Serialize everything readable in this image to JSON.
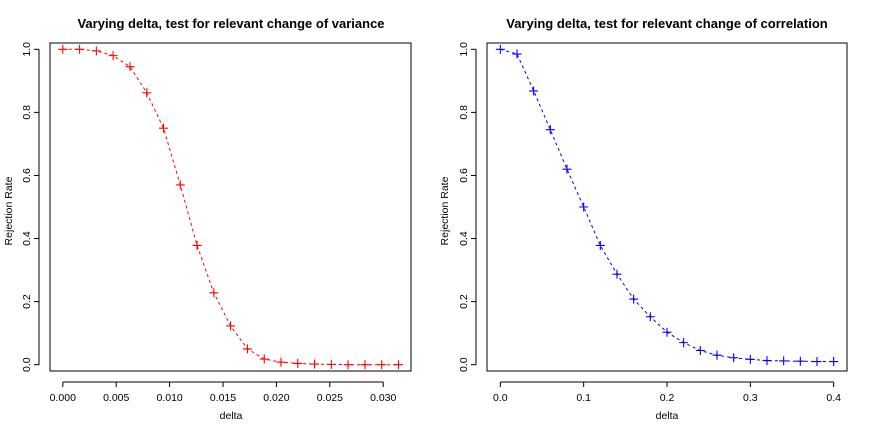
{
  "chart_data": [
    {
      "type": "line",
      "title": "Varying delta, test for relevant change of variance",
      "xlabel": "delta",
      "ylabel": "Rejection Rate",
      "xlim": [
        -0.0012,
        0.0326
      ],
      "ylim": [
        -0.02,
        1.02
      ],
      "xticks": [
        0.0,
        0.005,
        0.01,
        0.015,
        0.02,
        0.025,
        0.03
      ],
      "xtick_labels": [
        "0.000",
        "0.005",
        "0.010",
        "0.015",
        "0.020",
        "0.025",
        "0.030"
      ],
      "yticks": [
        0.0,
        0.2,
        0.4,
        0.6,
        0.8,
        1.0
      ],
      "ytick_labels": [
        "0.0",
        "0.2",
        "0.4",
        "0.6",
        "0.8",
        "1.0"
      ],
      "color": "#ff0000",
      "marker": "plus",
      "line_style": "dashed",
      "grid": false,
      "series": [
        {
          "x": [
            0.0,
            0.00157,
            0.00314,
            0.00471,
            0.00629,
            0.00786,
            0.00943,
            0.011,
            0.01257,
            0.01414,
            0.01571,
            0.01729,
            0.01886,
            0.02043,
            0.022,
            0.02357,
            0.02514,
            0.02671,
            0.02829,
            0.02986,
            0.03143
          ],
          "values": [
            1.0,
            1.0,
            0.995,
            0.98,
            0.945,
            0.862,
            0.75,
            0.57,
            0.378,
            0.228,
            0.123,
            0.05,
            0.018,
            0.008,
            0.004,
            0.002,
            0.001,
            0.0,
            0.0,
            0.0,
            0.0
          ]
        }
      ]
    },
    {
      "type": "line",
      "title": "Varying delta, test for relevant change of correlation",
      "xlabel": "delta",
      "ylabel": "Rejection Rate",
      "xlim": [
        -0.016,
        0.416
      ],
      "ylim": [
        -0.02,
        1.02
      ],
      "xticks": [
        0.0,
        0.1,
        0.2,
        0.3,
        0.4
      ],
      "xtick_labels": [
        "0.0",
        "0.1",
        "0.2",
        "0.3",
        "0.4"
      ],
      "yticks": [
        0.0,
        0.2,
        0.4,
        0.6,
        0.8,
        1.0
      ],
      "ytick_labels": [
        "0.0",
        "0.2",
        "0.4",
        "0.6",
        "0.8",
        "1.0"
      ],
      "color": "#0000ff",
      "marker": "plus",
      "line_style": "dashed",
      "grid": false,
      "series": [
        {
          "x": [
            0.0,
            0.02,
            0.04,
            0.06,
            0.08,
            0.1,
            0.12,
            0.14,
            0.16,
            0.18,
            0.2,
            0.22,
            0.24,
            0.26,
            0.28,
            0.3,
            0.32,
            0.34,
            0.36,
            0.38,
            0.4
          ],
          "values": [
            1.0,
            0.985,
            0.868,
            0.745,
            0.62,
            0.5,
            0.378,
            0.287,
            0.208,
            0.152,
            0.103,
            0.07,
            0.045,
            0.03,
            0.022,
            0.017,
            0.013,
            0.012,
            0.011,
            0.01,
            0.01
          ]
        }
      ]
    }
  ]
}
